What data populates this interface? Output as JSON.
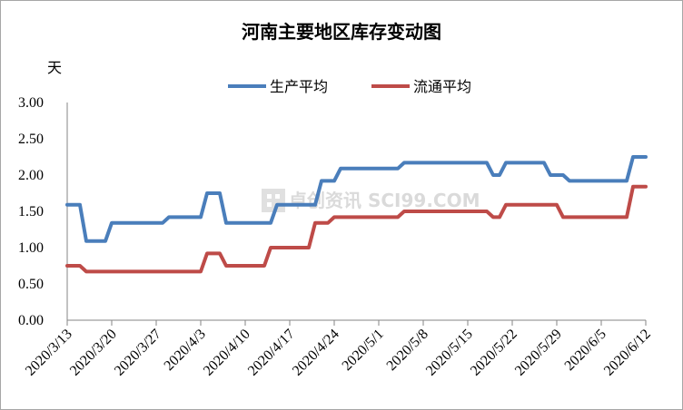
{
  "chart_data": {
    "type": "line",
    "title": "河南主要地区库存变动图",
    "ylabel": "天",
    "ylim": [
      0,
      3
    ],
    "yticks": [
      0,
      0.5,
      1.0,
      1.5,
      2.0,
      2.5,
      3.0
    ],
    "ytick_labels": [
      "0.00",
      "0.50",
      "1.00",
      "1.50",
      "2.00",
      "2.50",
      "3.00"
    ],
    "x_range": [
      "2020-03-13",
      "2020-06-12"
    ],
    "xtick_labels": [
      "2020/3/13",
      "2020/3/20",
      "2020/3/27",
      "2020/4/3",
      "2020/4/10",
      "2020/4/17",
      "2020/4/24",
      "2020/5/1",
      "2020/5/8",
      "2020/5/15",
      "2020/5/22",
      "2020/5/29",
      "2020/6/5",
      "2020/6/12"
    ],
    "grid": false,
    "legend_position": "top-center",
    "series": [
      {
        "name": "生产平均",
        "color": "#4a7ebb",
        "points": [
          [
            "2020-03-13",
            1.59
          ],
          [
            "2020-03-15",
            1.59
          ],
          [
            "2020-03-16",
            1.09
          ],
          [
            "2020-03-19",
            1.09
          ],
          [
            "2020-03-20",
            1.34
          ],
          [
            "2020-03-28",
            1.34
          ],
          [
            "2020-03-29",
            1.42
          ],
          [
            "2020-04-03",
            1.42
          ],
          [
            "2020-04-04",
            1.75
          ],
          [
            "2020-04-06",
            1.75
          ],
          [
            "2020-04-07",
            1.34
          ],
          [
            "2020-04-14",
            1.34
          ],
          [
            "2020-04-15",
            1.59
          ],
          [
            "2020-04-21",
            1.59
          ],
          [
            "2020-04-22",
            1.92
          ],
          [
            "2020-04-24",
            1.92
          ],
          [
            "2020-04-25",
            2.09
          ],
          [
            "2020-05-04",
            2.09
          ],
          [
            "2020-05-05",
            2.17
          ],
          [
            "2020-05-18",
            2.17
          ],
          [
            "2020-05-19",
            2.0
          ],
          [
            "2020-05-20",
            2.0
          ],
          [
            "2020-05-21",
            2.17
          ],
          [
            "2020-05-27",
            2.17
          ],
          [
            "2020-05-28",
            2.0
          ],
          [
            "2020-05-30",
            2.0
          ],
          [
            "2020-05-31",
            1.92
          ],
          [
            "2020-06-09",
            1.92
          ],
          [
            "2020-06-10",
            2.25
          ],
          [
            "2020-06-12",
            2.25
          ]
        ]
      },
      {
        "name": "流通平均",
        "color": "#be4b48",
        "points": [
          [
            "2020-03-13",
            0.75
          ],
          [
            "2020-03-15",
            0.75
          ],
          [
            "2020-03-16",
            0.67
          ],
          [
            "2020-04-03",
            0.67
          ],
          [
            "2020-04-04",
            0.92
          ],
          [
            "2020-04-06",
            0.92
          ],
          [
            "2020-04-07",
            0.75
          ],
          [
            "2020-04-13",
            0.75
          ],
          [
            "2020-04-14",
            1.0
          ],
          [
            "2020-04-20",
            1.0
          ],
          [
            "2020-04-21",
            1.34
          ],
          [
            "2020-04-23",
            1.34
          ],
          [
            "2020-04-24",
            1.42
          ],
          [
            "2020-05-04",
            1.42
          ],
          [
            "2020-05-05",
            1.5
          ],
          [
            "2020-05-18",
            1.5
          ],
          [
            "2020-05-19",
            1.42
          ],
          [
            "2020-05-20",
            1.42
          ],
          [
            "2020-05-21",
            1.59
          ],
          [
            "2020-05-29",
            1.59
          ],
          [
            "2020-05-30",
            1.42
          ],
          [
            "2020-06-09",
            1.42
          ],
          [
            "2020-06-10",
            1.84
          ],
          [
            "2020-06-12",
            1.84
          ]
        ]
      }
    ],
    "watermark": "卓创资讯 SCI99.COM"
  }
}
